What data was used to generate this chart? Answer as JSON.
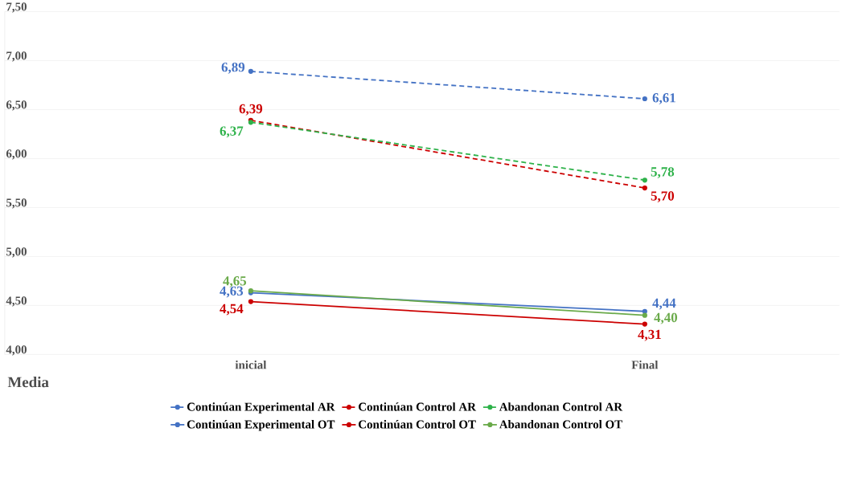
{
  "chart_data": {
    "type": "line",
    "xlabel": "Media",
    "categories": [
      "inicial",
      "Final"
    ],
    "ylim": [
      4,
      7.5
    ],
    "yticks": [
      {
        "value": 4,
        "label": "4,00"
      },
      {
        "value": 4.5,
        "label": "4,50"
      },
      {
        "value": 5,
        "label": "5,00"
      },
      {
        "value": 5.5,
        "label": "5,50"
      },
      {
        "value": 6,
        "label": "6,00"
      },
      {
        "value": 6.5,
        "label": "6,50"
      },
      {
        "value": 7,
        "label": "7,00"
      },
      {
        "value": 7.5,
        "label": "7,50"
      }
    ],
    "grid": "y",
    "legend": "bottom",
    "marker": "circle",
    "series": [
      {
        "name": "Continúan Experimental AR",
        "color": "#4472c4",
        "line_style": "dashed",
        "values": [
          6.89,
          6.61
        ],
        "value_labels": [
          "6,89",
          "6,61"
        ]
      },
      {
        "name": "Continúan Control AR",
        "color": "#cc0000",
        "line_style": "dashed",
        "values": [
          6.39,
          5.7
        ],
        "value_labels": [
          "6,39",
          "5,70"
        ]
      },
      {
        "name": "Abandonan Control AR",
        "color": "#2eb24a",
        "line_style": "dashed",
        "values": [
          6.37,
          5.78
        ],
        "value_labels": [
          "6,37",
          "5,78"
        ]
      },
      {
        "name": "Continúan Experimental OT",
        "color": "#4472c4",
        "line_style": "solid",
        "values": [
          4.63,
          4.44
        ],
        "value_labels": [
          "4,63",
          "4,44"
        ]
      },
      {
        "name": "Continúan Control OT",
        "color": "#cc0000",
        "line_style": "solid",
        "values": [
          4.54,
          4.31
        ],
        "value_labels": [
          "4,54",
          "4,31"
        ]
      },
      {
        "name": "Abandonan Control OT",
        "color": "#6aaa4a",
        "line_style": "solid",
        "values": [
          4.65,
          4.4
        ],
        "value_labels": [
          "4,65",
          "4,40"
        ]
      }
    ]
  }
}
